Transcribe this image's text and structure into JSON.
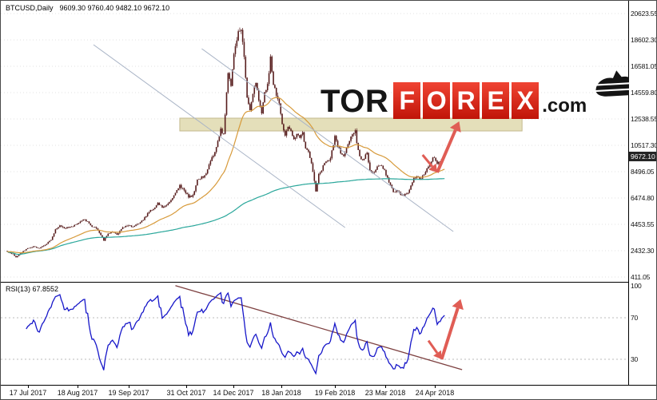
{
  "header": {
    "title_symbol": "BTCUSD,Daily",
    "title_ohlc": "9609.30 9760.40 9482.10 9672.10"
  },
  "logo": {
    "tor": "TOR",
    "forex": "FOREX",
    "com": ".com"
  },
  "rsi_panel": {
    "label": "RSI(13) 67.8552"
  },
  "axes": {
    "price_labels": [
      "20623.55",
      "18602.30",
      "16581.05",
      "14559.80",
      "12538.55",
      "10517.30",
      "8496.05",
      "6474.80",
      "4453.55",
      "2432.30",
      "411.05"
    ],
    "current_price": "9672.10",
    "rsi_labels": [
      "100",
      "70",
      "30"
    ],
    "date_labels": [
      "17 Jul 2017",
      "18 Aug 2017",
      "19 Sep 2017",
      "31 Oct 2017",
      "14 Dec 2017",
      "18 Jan 2018",
      "19 Feb 2018",
      "23 Mar 2018",
      "24 Apr 2018"
    ]
  },
  "colors": {
    "candle": "#571d1d",
    "ma_fast": "#d79a3a",
    "ma_slow": "#2aa79b",
    "channel": "#a9b4c6",
    "zone_fill": "#e2dcb4",
    "zone_border": "#c3ba8e",
    "arrow": "#e05d55",
    "rsi_line": "#1717c9",
    "rsi_trend": "#7d4040",
    "price_box_bg": "#262626",
    "grid": "#e2e2e2",
    "level_dash": "#bbbbbb",
    "logo_red": "#da251c"
  },
  "chart_data": [
    {
      "type": "candlestick",
      "symbol": "BTCUSD",
      "timeframe": "Daily",
      "last_ohlc": {
        "open": 9609.3,
        "high": 9760.4,
        "low": 9482.1,
        "close": 9672.1
      },
      "days": 300,
      "y_axis": {
        "top": 20623.55,
        "bottom": 411.05
      },
      "close_keypoints": [
        [
          0,
          2350
        ],
        [
          4,
          2150
        ],
        [
          6,
          1940
        ],
        [
          9,
          2220
        ],
        [
          13,
          2560
        ],
        [
          18,
          2750
        ],
        [
          22,
          2620
        ],
        [
          26,
          2880
        ],
        [
          30,
          3260
        ],
        [
          33,
          4060
        ],
        [
          36,
          4360
        ],
        [
          39,
          4160
        ],
        [
          43,
          4260
        ],
        [
          47,
          4390
        ],
        [
          52,
          4860
        ],
        [
          55,
          4630
        ],
        [
          58,
          4310
        ],
        [
          61,
          4160
        ],
        [
          64,
          3660
        ],
        [
          66,
          3230
        ],
        [
          69,
          3710
        ],
        [
          72,
          3910
        ],
        [
          75,
          3670
        ],
        [
          79,
          4210
        ],
        [
          83,
          4360
        ],
        [
          86,
          4260
        ],
        [
          89,
          4460
        ],
        [
          93,
          4810
        ],
        [
          97,
          5460
        ],
        [
          100,
          5660
        ],
        [
          103,
          6060
        ],
        [
          106,
          5760
        ],
        [
          109,
          5910
        ],
        [
          113,
          6460
        ],
        [
          116,
          7060
        ],
        [
          118,
          7410
        ],
        [
          121,
          7060
        ],
        [
          124,
          6560
        ],
        [
          127,
          6660
        ],
        [
          130,
          7860
        ],
        [
          133,
          8060
        ],
        [
          136,
          8260
        ],
        [
          139,
          9360
        ],
        [
          142,
          9910
        ],
        [
          144,
          10910
        ],
        [
          146,
          11710
        ],
        [
          148,
          11360
        ],
        [
          151,
          16060
        ],
        [
          153,
          15110
        ],
        [
          155,
          17460
        ],
        [
          158,
          19160
        ],
        [
          160,
          19410
        ],
        [
          162,
          17260
        ],
        [
          164,
          14060
        ],
        [
          166,
          13110
        ],
        [
          168,
          14310
        ],
        [
          170,
          15460
        ],
        [
          172,
          14060
        ],
        [
          174,
          13110
        ],
        [
          176,
          14460
        ],
        [
          178,
          15260
        ],
        [
          180,
          17160
        ],
        [
          182,
          15260
        ],
        [
          184,
          14360
        ],
        [
          186,
          13610
        ],
        [
          188,
          12060
        ],
        [
          190,
          11260
        ],
        [
          192,
          11860
        ],
        [
          194,
          11560
        ],
        [
          196,
          10960
        ],
        [
          198,
          11360
        ],
        [
          200,
          11160
        ],
        [
          202,
          11460
        ],
        [
          204,
          10260
        ],
        [
          206,
          9960
        ],
        [
          208,
          9210
        ],
        [
          210,
          7760
        ],
        [
          211,
          6960
        ],
        [
          213,
          8260
        ],
        [
          215,
          8660
        ],
        [
          218,
          9360
        ],
        [
          221,
          9460
        ],
        [
          224,
          11160
        ],
        [
          226,
          10460
        ],
        [
          228,
          9960
        ],
        [
          230,
          9710
        ],
        [
          232,
          10360
        ],
        [
          234,
          10960
        ],
        [
          236,
          11460
        ],
        [
          238,
          11560
        ],
        [
          240,
          10060
        ],
        [
          242,
          9360
        ],
        [
          244,
          9560
        ],
        [
          246,
          9910
        ],
        [
          248,
          8560
        ],
        [
          250,
          8360
        ],
        [
          252,
          8660
        ],
        [
          254,
          8960
        ],
        [
          256,
          8960
        ],
        [
          258,
          8560
        ],
        [
          260,
          7960
        ],
        [
          262,
          7460
        ],
        [
          264,
          6960
        ],
        [
          266,
          7060
        ],
        [
          268,
          6860
        ],
        [
          270,
          6660
        ],
        [
          272,
          6760
        ],
        [
          274,
          6860
        ],
        [
          276,
          7460
        ],
        [
          278,
          7960
        ],
        [
          280,
          8060
        ],
        [
          282,
          7910
        ],
        [
          284,
          8160
        ],
        [
          286,
          8560
        ],
        [
          288,
          8960
        ],
        [
          290,
          9360
        ],
        [
          292,
          9660
        ],
        [
          294,
          9010
        ],
        [
          296,
          9310
        ],
        [
          298,
          9560
        ],
        [
          299,
          9672.1
        ]
      ],
      "overlays": {
        "ma_fast": {
          "name": "fast moving average",
          "period": 40
        },
        "ma_slow": {
          "name": "slow moving average (expanding mean)"
        },
        "channel_lines": [
          {
            "from": [
              59,
              18235
            ],
            "to": [
              231,
              4210
            ]
          },
          {
            "from": [
              133,
              17929
            ],
            "to": [
              305,
              3904
            ]
          }
        ],
        "resistance_zone": {
          "day_from": 118,
          "day_to": 352,
          "price_top": 12600,
          "price_bottom": 11620
        },
        "forecast_arrows": [
          {
            "from": [
              284,
              9782
            ],
            "to": [
              294,
              8435
            ],
            "width": 3
          },
          {
            "from": [
              294,
              8435
            ],
            "to": [
              309,
              12354
            ],
            "width": 4
          }
        ]
      }
    },
    {
      "type": "line",
      "name": "RSI(13)",
      "value": 67.8552,
      "range": [
        0,
        100
      ],
      "levels": [
        70,
        30
      ],
      "trendline": {
        "from": [
          115,
          101
        ],
        "to": [
          311,
          20
        ]
      },
      "forecast_arrows": [
        {
          "from": [
            288,
            48
          ],
          "to": [
            297,
            30
          ],
          "width": 3
        },
        {
          "from": [
            297,
            30
          ],
          "to": [
            310,
            88
          ],
          "width": 4
        }
      ]
    }
  ]
}
